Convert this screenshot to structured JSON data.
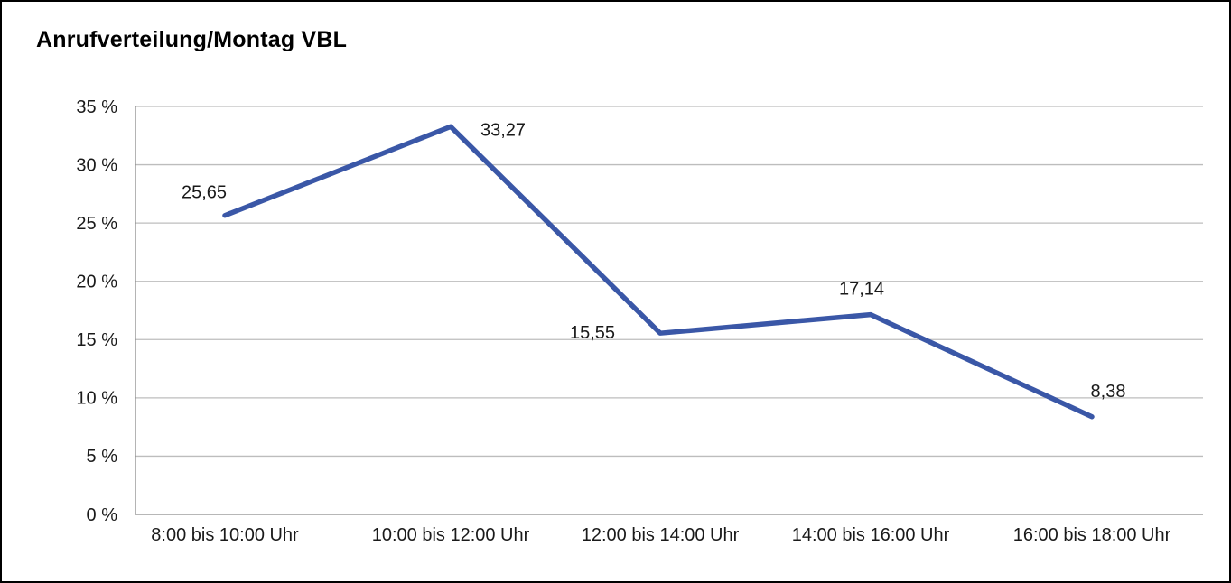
{
  "chart_data": {
    "type": "line",
    "title": "Anrufverteilung/Montag VBL",
    "categories": [
      "8:00 bis 10:00 Uhr",
      "10:00 bis 12:00 Uhr",
      "12:00 bis 14:00 Uhr",
      "14:00 bis 16:00 Uhr",
      "16:00 bis 18:00 Uhr"
    ],
    "values": [
      25.65,
      33.27,
      15.55,
      17.14,
      8.38
    ],
    "data_labels": [
      "25,65",
      "33,27",
      "15,55",
      "17,14",
      "8,38"
    ],
    "y_ticks": [
      {
        "value": 0,
        "label": "0 %"
      },
      {
        "value": 5,
        "label": "5 %"
      },
      {
        "value": 10,
        "label": "10 %"
      },
      {
        "value": 15,
        "label": "15 %"
      },
      {
        "value": 20,
        "label": "20 %"
      },
      {
        "value": 25,
        "label": "25 %"
      },
      {
        "value": 30,
        "label": "30 %"
      },
      {
        "value": 35,
        "label": "35 %"
      }
    ],
    "ylim": [
      0,
      35
    ],
    "grid": "horizontal",
    "legend": "none",
    "colors": {
      "line": "#3a57a7",
      "grid": "#bdbdbd",
      "axis": "#8c8c8c",
      "text": "#1a1a1a"
    }
  }
}
